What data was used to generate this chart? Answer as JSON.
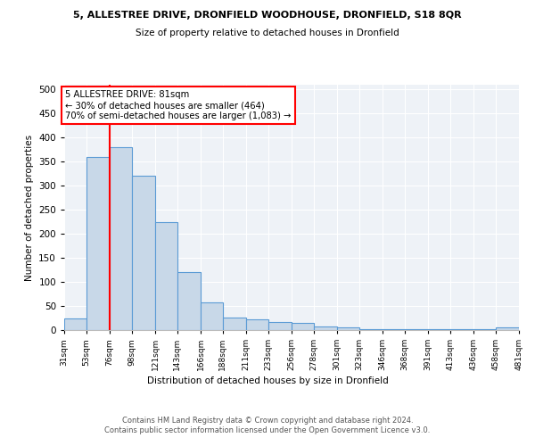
{
  "title": "5, ALLESTREE DRIVE, DRONFIELD WOODHOUSE, DRONFIELD, S18 8QR",
  "subtitle": "Size of property relative to detached houses in Dronfield",
  "xlabel": "Distribution of detached houses by size in Dronfield",
  "ylabel": "Number of detached properties",
  "bar_color": "#c8d8e8",
  "bar_edge_color": "#5b9bd5",
  "annotation_text": "5 ALLESTREE DRIVE: 81sqm\n← 30% of detached houses are smaller (464)\n70% of semi-detached houses are larger (1,083) →",
  "bins": [
    31,
    53,
    76,
    98,
    121,
    143,
    166,
    188,
    211,
    233,
    256,
    278,
    301,
    323,
    346,
    368,
    391,
    413,
    436,
    458,
    481
  ],
  "bar_heights": [
    25,
    360,
    380,
    320,
    225,
    120,
    58,
    26,
    22,
    17,
    14,
    7,
    5,
    2,
    2,
    2,
    2,
    2,
    2,
    5
  ],
  "ylim": [
    0,
    510
  ],
  "yticks": [
    0,
    50,
    100,
    150,
    200,
    250,
    300,
    350,
    400,
    450,
    500
  ],
  "red_line_x": 76,
  "footer_text": "Contains HM Land Registry data © Crown copyright and database right 2024.\nContains public sector information licensed under the Open Government Licence v3.0.",
  "background_color": "#eef2f7"
}
